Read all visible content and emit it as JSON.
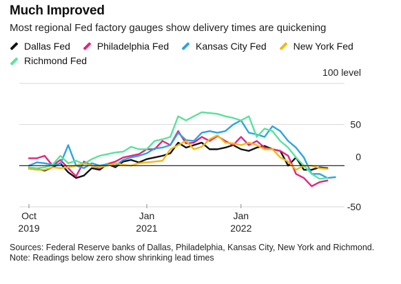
{
  "header": {
    "title": "Much Improved",
    "subtitle": "Most regional Fed factory gauges show delivery times are quickening"
  },
  "unit_label": "100 level",
  "footer": {
    "sources": "Sources: Federal Reserve banks of Dallas, Philadelphia, Kansas City, New York and Richmond.",
    "note": "Note: Readings below zero show shrinking lead times"
  },
  "colors": {
    "dallas": "#111111",
    "philadelphia": "#e6237c",
    "kansas_city": "#2ba3e4",
    "new_york": "#f5b80e",
    "richmond": "#57e39a",
    "grid": "#d9d9d9",
    "zero_line": "#111111",
    "axis": "#888888"
  },
  "chart_data": {
    "type": "line",
    "x": [
      "2019-10",
      "2019-11",
      "2019-12",
      "2020-01",
      "2020-02",
      "2020-03",
      "2020-04",
      "2020-05",
      "2020-06",
      "2020-07",
      "2020-08",
      "2020-09",
      "2020-10",
      "2020-11",
      "2020-12",
      "2021-01",
      "2021-02",
      "2021-03",
      "2021-04",
      "2021-05",
      "2021-06",
      "2021-07",
      "2021-08",
      "2021-09",
      "2021-10",
      "2021-11",
      "2021-12",
      "2022-01",
      "2022-02",
      "2022-03",
      "2022-04",
      "2022-05",
      "2022-06",
      "2022-07",
      "2022-08",
      "2022-09",
      "2022-10",
      "2022-11",
      "2022-12",
      "2023-01",
      "2023-02"
    ],
    "x_ticks": [
      {
        "date": "2019-10",
        "label": "Oct",
        "sublabel": "2019"
      },
      {
        "date": "2021-01",
        "label": "Jan",
        "sublabel": "2021"
      },
      {
        "date": "2022-01",
        "label": "Jan",
        "sublabel": "2022"
      }
    ],
    "y_ticks": [
      -50,
      0,
      50,
      100
    ],
    "y_tick_labels": [
      "-50",
      "0",
      "50",
      ""
    ],
    "ylim": [
      -50,
      100
    ],
    "legend_position": "top",
    "series": [
      {
        "name": "Dallas Fed",
        "color_key": "dallas",
        "values": [
          -3,
          -4,
          -6,
          -2,
          3,
          -8,
          -15,
          -12,
          -3,
          -5,
          2,
          -2,
          5,
          7,
          4,
          8,
          10,
          12,
          15,
          28,
          22,
          25,
          28,
          20,
          20,
          22,
          25,
          20,
          18,
          22,
          24,
          20,
          18,
          0,
          10,
          -5,
          -5,
          -2,
          -3,
          null,
          null
        ]
      },
      {
        "name": "Philadelphia Fed",
        "color_key": "philadelphia",
        "values": [
          9,
          9,
          12,
          0,
          7,
          -3,
          -13,
          5,
          0,
          -3,
          2,
          5,
          10,
          12,
          14,
          20,
          20,
          30,
          25,
          42,
          27,
          28,
          35,
          30,
          36,
          30,
          25,
          35,
          25,
          30,
          22,
          20,
          18,
          12,
          -10,
          -15,
          -25,
          -20,
          -18,
          null,
          null
        ]
      },
      {
        "name": "Kansas City Fed",
        "color_key": "kansas_city",
        "values": [
          0,
          4,
          3,
          1,
          2,
          25,
          0,
          -3,
          3,
          0,
          2,
          0,
          7,
          10,
          12,
          15,
          21,
          22,
          25,
          40,
          31,
          30,
          40,
          42,
          40,
          42,
          50,
          55,
          40,
          38,
          35,
          48,
          42,
          30,
          22,
          10,
          -10,
          -10,
          -15,
          -14,
          null
        ]
      },
      {
        "name": "New York Fed",
        "color_key": "new_york",
        "values": [
          -4,
          -5,
          -5,
          -2,
          -3,
          -2,
          0,
          3,
          0,
          -2,
          0,
          3,
          1,
          0,
          3,
          4,
          5,
          6,
          20,
          25,
          30,
          20,
          23,
          32,
          37,
          28,
          27,
          25,
          28,
          25,
          20,
          20,
          10,
          5,
          -5,
          0,
          0,
          -3,
          -4,
          null,
          null
        ]
      },
      {
        "name": "Richmond Fed",
        "color_key": "richmond",
        "values": [
          -2,
          -3,
          -2,
          1,
          12,
          3,
          6,
          2,
          8,
          12,
          14,
          16,
          17,
          23,
          20,
          20,
          30,
          32,
          35,
          60,
          55,
          60,
          65,
          64,
          63,
          60,
          58,
          55,
          60,
          35,
          45,
          42,
          30,
          22,
          10,
          0,
          -10,
          -16,
          -15,
          null,
          null
        ]
      }
    ]
  }
}
